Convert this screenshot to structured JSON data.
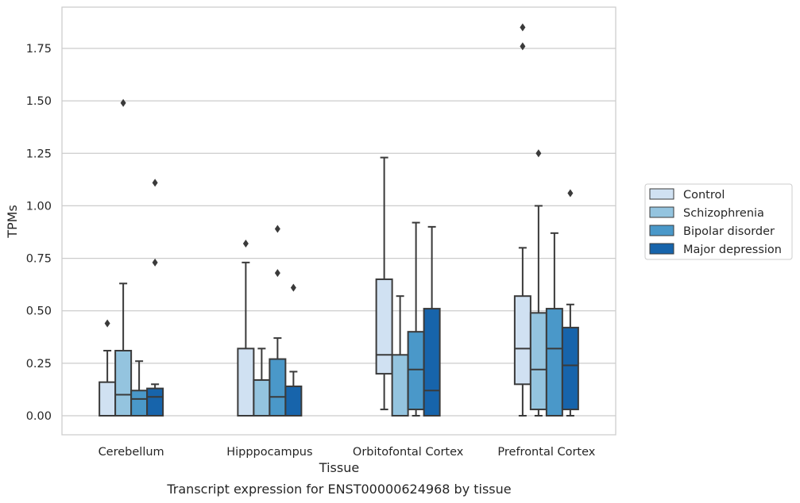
{
  "chart_data": {
    "type": "box",
    "xlabel": "Tissue",
    "ylabel": "TPMs",
    "caption": "Transcript expression for ENST00000624968 by tissue",
    "ylim": [
      -0.09,
      1.95
    ],
    "yticks": [
      "0.00",
      "0.25",
      "0.50",
      "0.75",
      "1.00",
      "1.25",
      "1.50",
      "1.75"
    ],
    "grid": true,
    "legend_position": "right",
    "categories": [
      "Cerebellum",
      "Hipppocampus",
      "Orbitofontal Cortex",
      "Prefrontal Cortex"
    ],
    "series": [
      {
        "name": "Control",
        "color": "#d0e1f2",
        "boxes": [
          {
            "whisker_low": 0.0,
            "q1": 0.0,
            "median": 0.0,
            "q3": 0.16,
            "whisker_high": 0.31,
            "outliers": [
              0.44
            ]
          },
          {
            "whisker_low": 0.0,
            "q1": 0.0,
            "median": 0.0,
            "q3": 0.32,
            "whisker_high": 0.73,
            "outliers": [
              0.82
            ]
          },
          {
            "whisker_low": 0.03,
            "q1": 0.2,
            "median": 0.29,
            "q3": 0.65,
            "whisker_high": 1.23,
            "outliers": []
          },
          {
            "whisker_low": 0.0,
            "q1": 0.15,
            "median": 0.32,
            "q3": 0.57,
            "whisker_high": 0.8,
            "outliers": [
              1.76,
              1.85
            ]
          }
        ]
      },
      {
        "name": "Schizophrenia",
        "color": "#94c4df",
        "boxes": [
          {
            "whisker_low": 0.0,
            "q1": 0.0,
            "median": 0.1,
            "q3": 0.31,
            "whisker_high": 0.63,
            "outliers": [
              1.49
            ]
          },
          {
            "whisker_low": 0.0,
            "q1": 0.0,
            "median": 0.0,
            "q3": 0.17,
            "whisker_high": 0.32,
            "outliers": []
          },
          {
            "whisker_low": 0.0,
            "q1": 0.0,
            "median": 0.0,
            "q3": 0.29,
            "whisker_high": 0.57,
            "outliers": []
          },
          {
            "whisker_low": 0.0,
            "q1": 0.03,
            "median": 0.22,
            "q3": 0.49,
            "whisker_high": 1.0,
            "outliers": [
              1.25
            ]
          }
        ]
      },
      {
        "name": "Bipolar disorder",
        "color": "#4a98c9",
        "boxes": [
          {
            "whisker_low": 0.0,
            "q1": 0.0,
            "median": 0.08,
            "q3": 0.12,
            "whisker_high": 0.26,
            "outliers": []
          },
          {
            "whisker_low": 0.0,
            "q1": 0.0,
            "median": 0.09,
            "q3": 0.27,
            "whisker_high": 0.37,
            "outliers": [
              0.68,
              0.89
            ]
          },
          {
            "whisker_low": 0.0,
            "q1": 0.03,
            "median": 0.22,
            "q3": 0.4,
            "whisker_high": 0.92,
            "outliers": []
          },
          {
            "whisker_low": 0.0,
            "q1": 0.0,
            "median": 0.32,
            "q3": 0.51,
            "whisker_high": 0.87,
            "outliers": []
          }
        ]
      },
      {
        "name": "Major depression",
        "color": "#1764ab",
        "boxes": [
          {
            "whisker_low": 0.0,
            "q1": 0.0,
            "median": 0.09,
            "q3": 0.13,
            "whisker_high": 0.15,
            "outliers": [
              0.73,
              1.11
            ]
          },
          {
            "whisker_low": 0.0,
            "q1": 0.0,
            "median": 0.0,
            "q3": 0.14,
            "whisker_high": 0.21,
            "outliers": [
              0.61
            ]
          },
          {
            "whisker_low": 0.0,
            "q1": 0.0,
            "median": 0.12,
            "q3": 0.51,
            "whisker_high": 0.9,
            "outliers": []
          },
          {
            "whisker_low": 0.0,
            "q1": 0.03,
            "median": 0.24,
            "q3": 0.42,
            "whisker_high": 0.53,
            "outliers": [
              1.06
            ]
          }
        ]
      }
    ]
  }
}
